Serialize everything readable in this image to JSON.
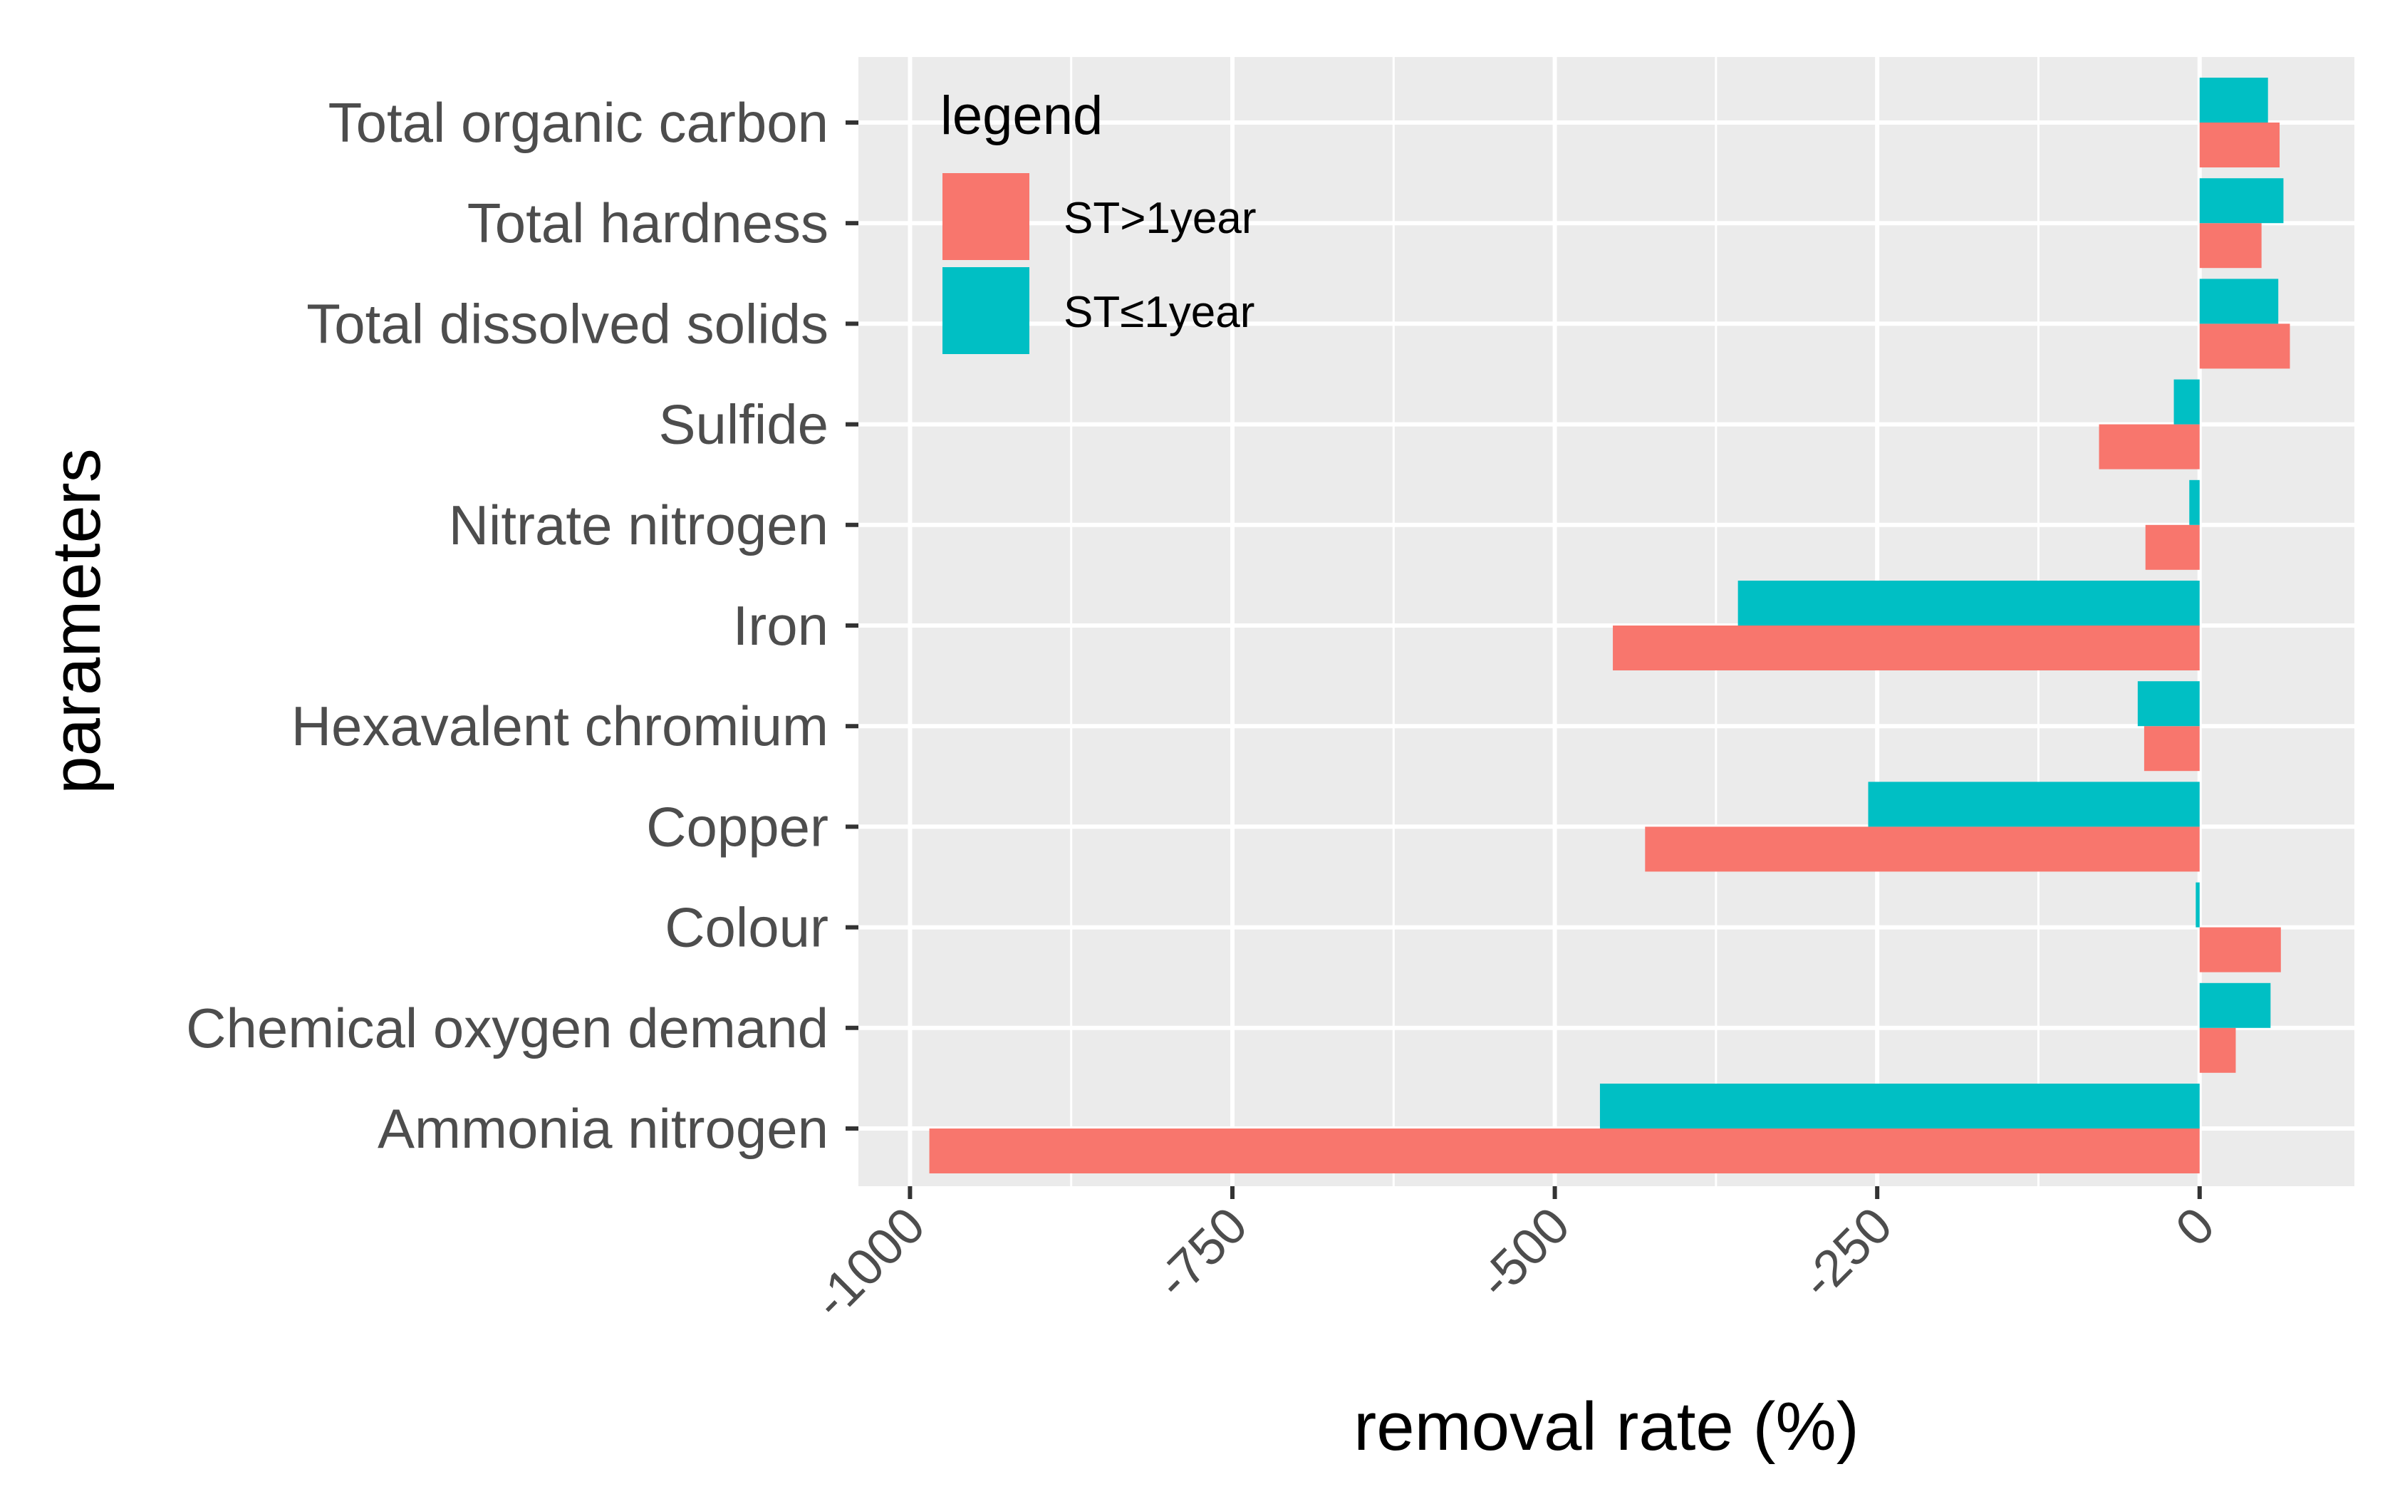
{
  "chart_data": {
    "type": "bar",
    "orientation": "horizontal",
    "title": "",
    "xlabel": "removal rate (%)",
    "ylabel": "parameters",
    "xlim": [
      -1040,
      120
    ],
    "xticks": [
      -1000,
      -750,
      -500,
      -250,
      0
    ],
    "xtick_labels": [
      "-1000",
      "-750",
      "-500",
      "-250",
      "0"
    ],
    "grid": true,
    "legend": {
      "title": "legend",
      "position": "top-left"
    },
    "categories": [
      "Total organic carbon",
      "Total hardness",
      "Total dissolved solids",
      "Sulfide",
      "Nitrate nitrogen",
      "Iron",
      "Hexavalent chromium",
      "Copper",
      "Colour",
      "Chemical oxygen demand",
      "Ammonia nitrogen"
    ],
    "series": [
      {
        "name": "ST>1year",
        "color": "#F8766D",
        "values": [
          62,
          48,
          70,
          -78,
          -42,
          -455,
          -43,
          -430,
          63,
          28,
          -985
        ]
      },
      {
        "name": "ST≤1year",
        "color": "#00BFC4",
        "values": [
          53,
          65,
          61,
          -20,
          -8,
          -358,
          -48,
          -257,
          -3,
          55,
          -465
        ]
      }
    ]
  }
}
